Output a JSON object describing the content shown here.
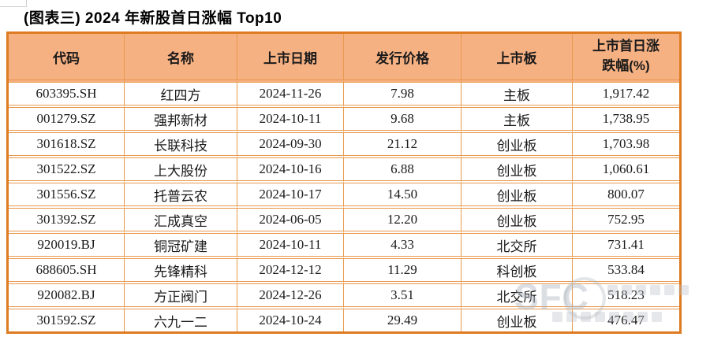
{
  "title": "(图表三) 2024 年新股首日涨幅 Top10",
  "table": {
    "columns": [
      {
        "key": "code",
        "label": "代码"
      },
      {
        "key": "name",
        "label": "名称"
      },
      {
        "key": "date",
        "label": "上市日期"
      },
      {
        "key": "price",
        "label": "发行价格"
      },
      {
        "key": "board",
        "label": "上市板"
      },
      {
        "key": "change",
        "label": "上市首日涨跌幅(%)"
      }
    ],
    "rows": [
      {
        "code": "603395.SH",
        "name": "红四方",
        "date": "2024-11-26",
        "price": "7.98",
        "board": "主板",
        "change": "1,917.42"
      },
      {
        "code": "001279.SZ",
        "name": "强邦新材",
        "date": "2024-10-11",
        "price": "9.68",
        "board": "主板",
        "change": "1,738.95"
      },
      {
        "code": "301618.SZ",
        "name": "长联科技",
        "date": "2024-09-30",
        "price": "21.12",
        "board": "创业板",
        "change": "1,703.98"
      },
      {
        "code": "301522.SZ",
        "name": "上大股份",
        "date": "2024-10-16",
        "price": "6.88",
        "board": "创业板",
        "change": "1,060.61"
      },
      {
        "code": "301556.SZ",
        "name": "托普云农",
        "date": "2024-10-17",
        "price": "14.50",
        "board": "创业板",
        "change": "800.07"
      },
      {
        "code": "301392.SZ",
        "name": "汇成真空",
        "date": "2024-06-05",
        "price": "12.20",
        "board": "创业板",
        "change": "752.95"
      },
      {
        "code": "920019.BJ",
        "name": "铜冠矿建",
        "date": "2024-10-11",
        "price": "4.33",
        "board": "北交所",
        "change": "731.41"
      },
      {
        "code": "688605.SH",
        "name": "先锋精科",
        "date": "2024-12-12",
        "price": "11.29",
        "board": "科创板",
        "change": "533.84"
      },
      {
        "code": "920082.BJ",
        "name": "方正阀门",
        "date": "2024-12-26",
        "price": "3.51",
        "board": "北交所",
        "change": "518.23"
      },
      {
        "code": "301592.SZ",
        "name": "六九一二",
        "date": "2024-10-24",
        "price": "29.49",
        "board": "创业板",
        "change": "476.47"
      }
    ]
  },
  "watermark": {
    "text": "SFC"
  },
  "colors": {
    "header_fill": "#F6B183",
    "outer_border": "#DE7B20",
    "grid_line": "#E8994E",
    "title_text": "#000000",
    "cell_text": "#1A1A1A",
    "watermark_gray": "#B0B6BE"
  }
}
